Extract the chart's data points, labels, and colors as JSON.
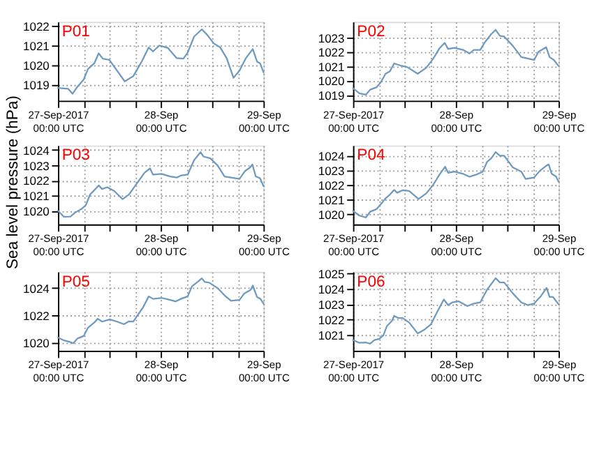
{
  "chart_data": [
    {
      "type": "line",
      "title": "P01",
      "xlim": [
        "2017-09-27T00:00",
        "2017-09-29T00:00"
      ],
      "ylim": [
        1018.2,
        1022.2
      ],
      "yticks": [
        1019,
        1020,
        1021,
        1022
      ],
      "grid": true,
      "marker": "none",
      "line_style": "solid",
      "xticks": [
        {
          "value": "2017-09-27T00:00",
          "label": "27-Sep-2017\n00:00 UTC"
        },
        {
          "value": "2017-09-27T06:00",
          "label": null
        },
        {
          "value": "2017-09-27T12:00",
          "label": null
        },
        {
          "value": "2017-09-27T18:00",
          "label": null
        },
        {
          "value": "2017-09-28T00:00",
          "label": "28-Sep\n00:00 UTC"
        },
        {
          "value": "2017-09-28T06:00",
          "label": null
        },
        {
          "value": "2017-09-28T12:00",
          "label": null
        },
        {
          "value": "2017-09-28T18:00",
          "label": null
        },
        {
          "value": "2017-09-29T00:00",
          "label": "29-Sep\n00:00 UTC"
        }
      ],
      "series": [
        {
          "color": "#6f9ac0",
          "x": [
            "2017-09-27T00:00",
            "2017-09-27T02:24",
            "2017-09-27T03:24",
            "2017-09-27T04:30",
            "2017-09-27T06:00",
            "2017-09-27T07:00",
            "2017-09-27T08:30",
            "2017-09-27T09:30",
            "2017-09-27T10:30",
            "2017-09-27T12:00",
            "2017-09-27T15:36",
            "2017-09-27T17:36",
            "2017-09-27T19:36",
            "2017-09-27T21:12",
            "2017-09-27T22:12",
            "2017-09-27T23:42",
            "2017-09-28T01:42",
            "2017-09-28T03:42",
            "2017-09-28T05:18",
            "2017-09-28T06:18",
            "2017-09-28T07:48",
            "2017-09-28T09:36",
            "2017-09-28T10:48",
            "2017-09-28T12:24",
            "2017-09-28T13:54",
            "2017-09-28T15:24",
            "2017-09-28T17:00",
            "2017-09-28T18:24",
            "2017-09-28T19:54",
            "2017-09-28T21:30",
            "2017-09-28T22:30",
            "2017-09-28T23:12",
            "2017-09-29T00:00"
          ],
          "values": [
            1018.85,
            1018.8,
            1018.55,
            1018.9,
            1019.27,
            1019.8,
            1020.1,
            1020.6,
            1020.33,
            1020.27,
            1019.18,
            1019.45,
            1020.2,
            1020.9,
            1020.7,
            1021.0,
            1020.87,
            1020.36,
            1020.33,
            1020.64,
            1021.45,
            1021.82,
            1021.55,
            1021.1,
            1020.9,
            1020.36,
            1019.36,
            1019.73,
            1020.36,
            1020.82,
            1020.18,
            1020.1,
            1019.64
          ]
        }
      ]
    },
    {
      "type": "line",
      "title": "P02",
      "xlim": [
        "2017-09-27T00:00",
        "2017-09-29T00:00"
      ],
      "ylim": [
        1018.6,
        1024.1
      ],
      "yticks": [
        1019,
        1020,
        1021,
        1022,
        1023
      ],
      "grid": true,
      "marker": "none",
      "line_style": "solid",
      "xticks": [
        {
          "value": "2017-09-27T00:00",
          "label": "27-Sep-2017\n00:00 UTC"
        },
        {
          "value": "2017-09-27T06:00",
          "label": null
        },
        {
          "value": "2017-09-27T12:00",
          "label": null
        },
        {
          "value": "2017-09-27T18:00",
          "label": null
        },
        {
          "value": "2017-09-28T00:00",
          "label": "28-Sep\n00:00 UTC"
        },
        {
          "value": "2017-09-28T06:00",
          "label": null
        },
        {
          "value": "2017-09-28T12:00",
          "label": null
        },
        {
          "value": "2017-09-28T18:00",
          "label": null
        },
        {
          "value": "2017-09-29T00:00",
          "label": "29-Sep\n00:00 UTC"
        }
      ],
      "series": [
        {
          "color": "#6f9ac0",
          "x": [
            "2017-09-27T00:00",
            "2017-09-27T01:30",
            "2017-09-27T03:00",
            "2017-09-27T04:00",
            "2017-09-27T05:30",
            "2017-09-27T06:30",
            "2017-09-27T07:36",
            "2017-09-27T08:36",
            "2017-09-27T09:36",
            "2017-09-27T11:06",
            "2017-09-27T12:36",
            "2017-09-27T15:06",
            "2017-09-27T17:06",
            "2017-09-27T18:42",
            "2017-09-27T20:12",
            "2017-09-27T21:24",
            "2017-09-27T22:12",
            "2017-09-27T23:42",
            "2017-09-28T01:42",
            "2017-09-28T03:12",
            "2017-09-28T04:12",
            "2017-09-28T05:42",
            "2017-09-28T06:48",
            "2017-09-28T08:18",
            "2017-09-28T09:18",
            "2017-09-28T10:18",
            "2017-09-28T11:18",
            "2017-09-28T13:18",
            "2017-09-28T15:18",
            "2017-09-28T16:48",
            "2017-09-28T18:18",
            "2017-09-28T19:18",
            "2017-09-28T21:06",
            "2017-09-28T21:54",
            "2017-09-28T22:54",
            "2017-09-29T00:00"
          ],
          "values": [
            1019.47,
            1019.12,
            1019.02,
            1019.37,
            1019.54,
            1019.9,
            1020.48,
            1020.65,
            1021.2,
            1021.05,
            1020.95,
            1020.48,
            1020.9,
            1021.52,
            1022.26,
            1022.63,
            1022.21,
            1022.28,
            1022.14,
            1021.89,
            1022.14,
            1022.14,
            1022.68,
            1023.25,
            1023.54,
            1023.12,
            1023.07,
            1022.43,
            1021.64,
            1021.54,
            1021.44,
            1022.01,
            1022.33,
            1021.64,
            1021.44,
            1021.02
          ]
        }
      ]
    },
    {
      "type": "line",
      "title": "P03",
      "ylabel": "Sea level pressure (hPa)",
      "xlim": [
        "2017-09-27T00:00",
        "2017-09-29T00:00"
      ],
      "ylim": [
        1019.1,
        1024.3
      ],
      "yticks": [
        1020,
        1021,
        1022,
        1023,
        1024
      ],
      "grid": true,
      "marker": "none",
      "line_style": "solid",
      "xticks": [
        {
          "value": "2017-09-27T00:00",
          "label": "27-Sep-2017\n00:00 UTC"
        },
        {
          "value": "2017-09-27T06:00",
          "label": null
        },
        {
          "value": "2017-09-27T12:00",
          "label": null
        },
        {
          "value": "2017-09-27T18:00",
          "label": null
        },
        {
          "value": "2017-09-28T00:00",
          "label": "28-Sep\n00:00 UTC"
        },
        {
          "value": "2017-09-28T06:00",
          "label": null
        },
        {
          "value": "2017-09-28T12:00",
          "label": null
        },
        {
          "value": "2017-09-28T18:00",
          "label": null
        },
        {
          "value": "2017-09-29T00:00",
          "label": "29-Sep\n00:00 UTC"
        }
      ],
      "series": [
        {
          "color": "#6f9ac0",
          "x": [
            "2017-09-27T00:00",
            "2017-09-27T01:24",
            "2017-09-27T02:54",
            "2017-09-27T04:00",
            "2017-09-27T05:30",
            "2017-09-27T06:30",
            "2017-09-27T07:30",
            "2017-09-27T08:30",
            "2017-09-27T09:30",
            "2017-09-27T10:18",
            "2017-09-27T11:30",
            "2017-09-27T13:06",
            "2017-09-27T15:06",
            "2017-09-27T16:36",
            "2017-09-27T18:06",
            "2017-09-27T20:12",
            "2017-09-27T21:30",
            "2017-09-27T22:12",
            "2017-09-28T00:12",
            "2017-09-28T02:12",
            "2017-09-28T03:48",
            "2017-09-28T04:48",
            "2017-09-28T06:18",
            "2017-09-28T07:48",
            "2017-09-28T09:18",
            "2017-09-28T10:00",
            "2017-09-28T11:36",
            "2017-09-28T13:18",
            "2017-09-28T14:54",
            "2017-09-28T16:24",
            "2017-09-28T18:24",
            "2017-09-28T19:42",
            "2017-09-28T20:54",
            "2017-09-28T21:24",
            "2017-09-28T22:12",
            "2017-09-28T23:12",
            "2017-09-29T00:00"
          ],
          "values": [
            1020.0,
            1019.6,
            1019.62,
            1019.88,
            1020.12,
            1020.36,
            1021.07,
            1021.36,
            1021.67,
            1021.43,
            1021.55,
            1021.31,
            1020.76,
            1021.07,
            1021.67,
            1022.5,
            1022.79,
            1022.38,
            1022.43,
            1022.26,
            1022.19,
            1022.33,
            1022.38,
            1023.33,
            1023.86,
            1023.57,
            1023.45,
            1022.98,
            1022.26,
            1022.19,
            1022.1,
            1022.62,
            1022.86,
            1023.05,
            1022.26,
            1022.14,
            1021.62
          ]
        }
      ]
    },
    {
      "type": "line",
      "title": "P04",
      "xlim": [
        "2017-09-27T00:00",
        "2017-09-29T00:00"
      ],
      "ylim": [
        1019.3,
        1024.7
      ],
      "yticks": [
        1020,
        1021,
        1022,
        1023,
        1024
      ],
      "grid": true,
      "marker": "none",
      "line_style": "solid",
      "xticks": [
        {
          "value": "2017-09-27T00:00",
          "label": "27-Sep-2017\n00:00 UTC"
        },
        {
          "value": "2017-09-27T06:00",
          "label": null
        },
        {
          "value": "2017-09-27T12:00",
          "label": null
        },
        {
          "value": "2017-09-27T18:00",
          "label": null
        },
        {
          "value": "2017-09-28T00:00",
          "label": "28-Sep\n00:00 UTC"
        },
        {
          "value": "2017-09-28T06:00",
          "label": null
        },
        {
          "value": "2017-09-28T12:00",
          "label": null
        },
        {
          "value": "2017-09-28T18:00",
          "label": null
        },
        {
          "value": "2017-09-29T00:00",
          "label": "29-Sep\n00:00 UTC"
        }
      ],
      "series": [
        {
          "color": "#6f9ac0",
          "x": [
            "2017-09-27T00:00",
            "2017-09-27T01:30",
            "2017-09-27T03:00",
            "2017-09-27T04:00",
            "2017-09-27T05:30",
            "2017-09-27T06:36",
            "2017-09-27T07:36",
            "2017-09-27T08:36",
            "2017-09-27T09:36",
            "2017-09-27T10:18",
            "2017-09-27T11:36",
            "2017-09-27T13:06",
            "2017-09-27T15:18",
            "2017-09-27T17:06",
            "2017-09-27T18:36",
            "2017-09-27T20:12",
            "2017-09-27T21:30",
            "2017-09-27T22:12",
            "2017-09-27T23:42",
            "2017-09-28T01:42",
            "2017-09-28T03:12",
            "2017-09-28T04:48",
            "2017-09-28T06:18",
            "2017-09-28T07:18",
            "2017-09-28T08:18",
            "2017-09-28T09:18",
            "2017-09-28T10:18",
            "2017-09-28T11:18",
            "2017-09-28T13:18",
            "2017-09-28T15:18",
            "2017-09-28T16:18",
            "2017-09-28T18:18",
            "2017-09-28T19:36",
            "2017-09-28T21:12",
            "2017-09-28T21:42",
            "2017-09-28T22:24",
            "2017-09-28T23:24",
            "2017-09-29T00:00"
          ],
          "values": [
            1020.22,
            1019.9,
            1019.78,
            1020.17,
            1020.35,
            1020.72,
            1021.09,
            1021.34,
            1021.66,
            1021.47,
            1021.64,
            1021.59,
            1021.04,
            1021.42,
            1021.96,
            1022.71,
            1023.25,
            1022.83,
            1022.91,
            1022.76,
            1022.56,
            1022.71,
            1022.91,
            1023.58,
            1023.83,
            1024.25,
            1024.0,
            1024.0,
            1023.2,
            1022.91,
            1022.41,
            1022.51,
            1022.96,
            1023.33,
            1023.4,
            1022.76,
            1022.58,
            1022.21
          ]
        }
      ]
    },
    {
      "type": "line",
      "title": "P05",
      "xlim": [
        "2017-09-27T00:00",
        "2017-09-29T00:00"
      ],
      "ylim": [
        1019.4,
        1025.2
      ],
      "yticks": [
        1020,
        1022,
        1024
      ],
      "grid": true,
      "marker": "none",
      "line_style": "solid",
      "xticks": [
        {
          "value": "2017-09-27T00:00",
          "label": "27-Sep-2017\n00:00 UTC"
        },
        {
          "value": "2017-09-27T06:00",
          "label": null
        },
        {
          "value": "2017-09-27T12:00",
          "label": null
        },
        {
          "value": "2017-09-27T18:00",
          "label": null
        },
        {
          "value": "2017-09-28T00:00",
          "label": "28-Sep\n00:00 UTC"
        },
        {
          "value": "2017-09-28T06:00",
          "label": null
        },
        {
          "value": "2017-09-28T12:00",
          "label": null
        },
        {
          "value": "2017-09-28T18:00",
          "label": null
        },
        {
          "value": "2017-09-29T00:00",
          "label": "29-Sep\n00:00 UTC"
        }
      ],
      "series": [
        {
          "color": "#6f9ac0",
          "x": [
            "2017-09-27T00:00",
            "2017-09-27T01:24",
            "2017-09-27T02:54",
            "2017-09-27T03:36",
            "2017-09-27T04:30",
            "2017-09-27T06:00",
            "2017-09-27T07:00",
            "2017-09-27T08:30",
            "2017-09-27T09:18",
            "2017-09-27T10:18",
            "2017-09-27T12:06",
            "2017-09-27T13:48",
            "2017-09-27T15:24",
            "2017-09-27T16:36",
            "2017-09-27T17:36",
            "2017-09-27T18:36",
            "2017-09-27T19:48",
            "2017-09-27T21:12",
            "2017-09-27T22:12",
            "2017-09-28T00:12",
            "2017-09-28T02:12",
            "2017-09-28T03:30",
            "2017-09-28T04:42",
            "2017-09-28T06:18",
            "2017-09-28T07:18",
            "2017-09-28T08:36",
            "2017-09-28T09:36",
            "2017-09-28T10:18",
            "2017-09-28T11:18",
            "2017-09-28T13:18",
            "2017-09-28T14:54",
            "2017-09-28T16:24",
            "2017-09-28T18:24",
            "2017-09-28T19:30",
            "2017-09-28T21:00",
            "2017-09-28T21:30",
            "2017-09-28T22:30",
            "2017-09-28T23:18",
            "2017-09-29T00:00"
          ],
          "values": [
            1020.37,
            1020.16,
            1020.03,
            1019.95,
            1020.29,
            1020.48,
            1021.09,
            1021.48,
            1021.75,
            1021.54,
            1021.7,
            1021.54,
            1021.35,
            1021.56,
            1021.54,
            1022.01,
            1022.54,
            1023.39,
            1023.21,
            1023.28,
            1023.13,
            1023.02,
            1023.21,
            1023.39,
            1024.13,
            1024.45,
            1024.72,
            1024.45,
            1024.4,
            1024.0,
            1023.47,
            1023.07,
            1023.13,
            1023.6,
            1023.87,
            1024.19,
            1023.34,
            1023.21,
            1022.86
          ]
        }
      ]
    },
    {
      "type": "line",
      "title": "P06",
      "xlim": [
        "2017-09-27T00:00",
        "2017-09-29T00:00"
      ],
      "ylim": [
        1020.0,
        1025.1
      ],
      "yticks": [
        1021,
        1022,
        1023,
        1024,
        1025
      ],
      "grid": true,
      "marker": "none",
      "line_style": "solid",
      "xticks": [
        {
          "value": "2017-09-27T00:00",
          "label": "27-Sep-2017\n00:00 UTC"
        },
        {
          "value": "2017-09-27T06:00",
          "label": null
        },
        {
          "value": "2017-09-27T12:00",
          "label": null
        },
        {
          "value": "2017-09-27T18:00",
          "label": null
        },
        {
          "value": "2017-09-28T00:00",
          "label": "28-Sep\n00:00 UTC"
        },
        {
          "value": "2017-09-28T06:00",
          "label": null
        },
        {
          "value": "2017-09-28T12:00",
          "label": null
        },
        {
          "value": "2017-09-28T18:00",
          "label": null
        },
        {
          "value": "2017-09-29T00:00",
          "label": "29-Sep\n00:00 UTC"
        }
      ],
      "series": [
        {
          "color": "#6f9ac0",
          "x": [
            "2017-09-27T00:00",
            "2017-09-27T01:30",
            "2017-09-27T03:00",
            "2017-09-27T04:00",
            "2017-09-27T05:00",
            "2017-09-27T06:06",
            "2017-09-27T07:06",
            "2017-09-27T07:54",
            "2017-09-27T09:06",
            "2017-09-27T09:36",
            "2017-09-27T10:36",
            "2017-09-27T11:36",
            "2017-09-27T13:06",
            "2017-09-27T15:06",
            "2017-09-27T16:36",
            "2017-09-27T18:12",
            "2017-09-27T19:42",
            "2017-09-27T21:12",
            "2017-09-27T22:12",
            "2017-09-27T23:12",
            "2017-09-28T00:42",
            "2017-09-28T02:42",
            "2017-09-28T04:12",
            "2017-09-28T05:42",
            "2017-09-28T07:18",
            "2017-09-28T09:18",
            "2017-09-28T10:18",
            "2017-09-28T11:18",
            "2017-09-28T13:18",
            "2017-09-28T15:18",
            "2017-09-28T16:48",
            "2017-09-28T18:18",
            "2017-09-28T19:54",
            "2017-09-28T21:12",
            "2017-09-28T21:54",
            "2017-09-28T22:42",
            "2017-09-29T00:00"
          ],
          "values": [
            1020.69,
            1020.51,
            1020.53,
            1020.46,
            1020.69,
            1020.76,
            1021.0,
            1021.59,
            1021.94,
            1022.25,
            1022.11,
            1022.11,
            1021.82,
            1021.12,
            1021.35,
            1021.71,
            1022.53,
            1023.31,
            1022.95,
            1023.12,
            1023.19,
            1022.88,
            1023.05,
            1023.12,
            1023.94,
            1024.69,
            1024.41,
            1024.41,
            1023.71,
            1023.12,
            1022.95,
            1023.05,
            1023.54,
            1024.06,
            1023.47,
            1023.47,
            1023.0
          ]
        }
      ]
    }
  ]
}
